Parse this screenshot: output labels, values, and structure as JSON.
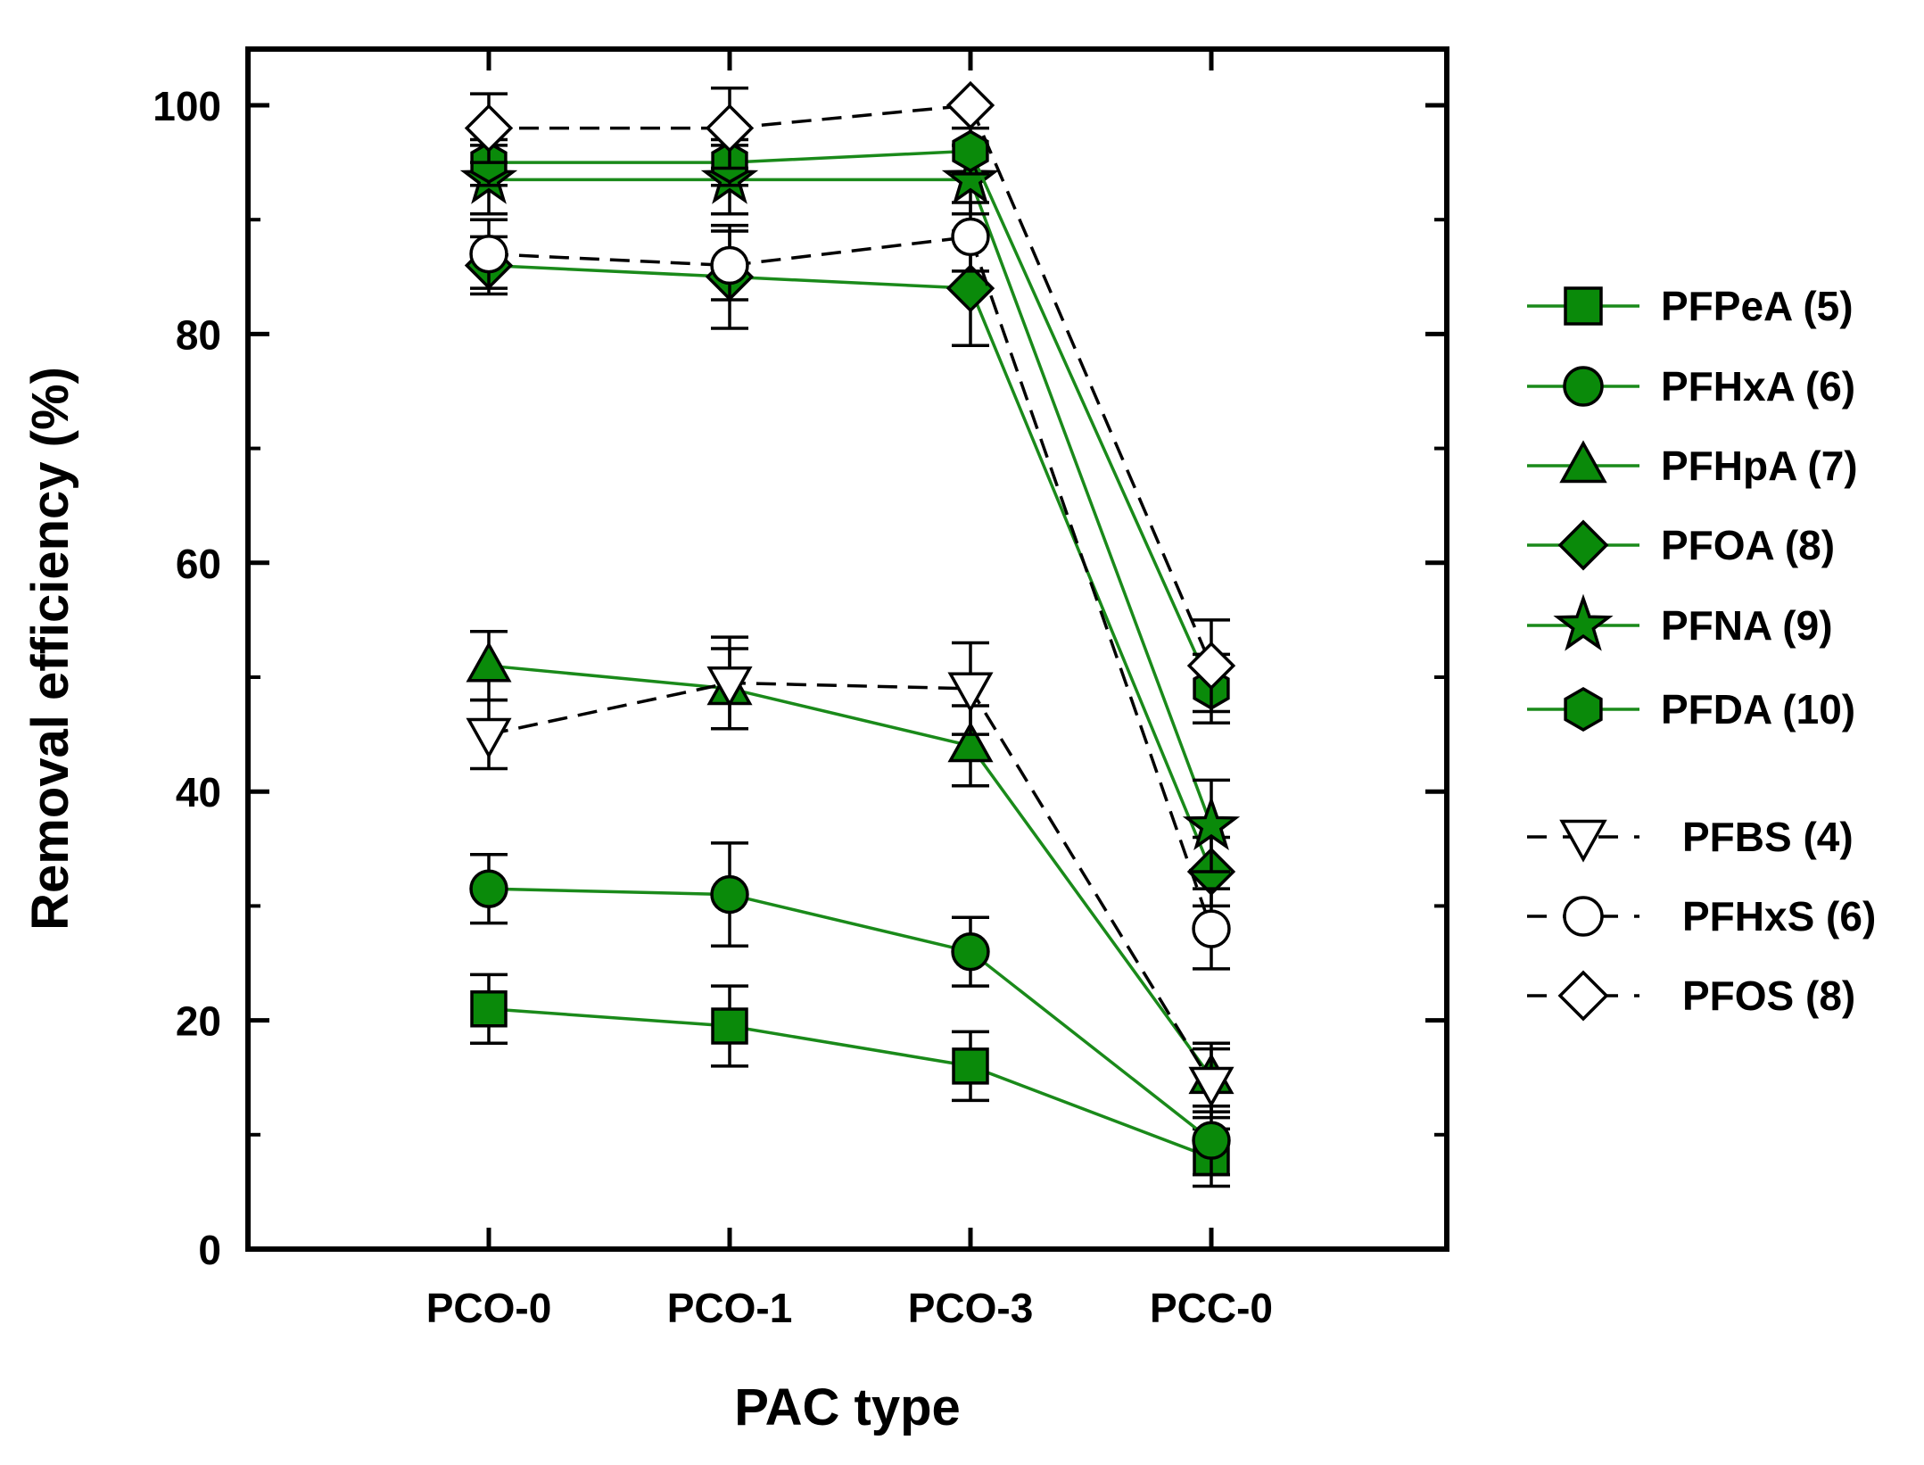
{
  "chart_data": {
    "type": "line",
    "title": "",
    "xlabel": "PAC type",
    "ylabel": "Removal efficiency  (%)",
    "categories": [
      "PCO-0",
      "PCO-1",
      "PCO-3",
      "PCC-0"
    ],
    "ylim": [
      0,
      100
    ],
    "yticks": [
      0,
      20,
      40,
      60,
      80,
      100
    ],
    "ytick_labels": [
      "0",
      "20",
      "40",
      "60",
      "80",
      "100"
    ],
    "grid": false,
    "legend_position": "right",
    "colors": {
      "green": "#0a8a0a",
      "line_green": "#1a8a1a",
      "black": "#000000",
      "white": "#ffffff"
    },
    "series": [
      {
        "name": "PFPeA (5)",
        "marker": "square",
        "fill": "green",
        "line": "solid",
        "values": [
          21,
          19.5,
          16,
          8
        ],
        "errors": [
          3,
          3.5,
          3,
          2.5
        ]
      },
      {
        "name": "PFHxA (6)",
        "marker": "circle",
        "fill": "green",
        "line": "solid",
        "values": [
          31.5,
          31,
          26,
          9.5
        ],
        "errors": [
          3,
          4.5,
          3,
          3
        ]
      },
      {
        "name": "PFHpA (7)",
        "marker": "triangle",
        "fill": "green",
        "line": "solid",
        "values": [
          51,
          49,
          44,
          15
        ],
        "errors": [
          3,
          3.5,
          3.5,
          3
        ]
      },
      {
        "name": "PFOA (8)",
        "marker": "diamond",
        "fill": "green",
        "line": "solid",
        "values": [
          86,
          85,
          84,
          33
        ],
        "errors": [
          2.5,
          4.5,
          5,
          3
        ]
      },
      {
        "name": "PFNA (9)",
        "marker": "star",
        "fill": "green",
        "line": "solid",
        "values": [
          93.5,
          93.5,
          93.5,
          37
        ],
        "errors": [
          3,
          3,
          3,
          4
        ]
      },
      {
        "name": "PFDA (10)",
        "marker": "hexagon",
        "fill": "green",
        "line": "solid",
        "values": [
          95,
          95,
          96,
          49
        ],
        "errors": [
          2,
          2,
          2,
          3
        ]
      },
      {
        "name": "PFBS (4)",
        "marker": "triangle-down",
        "fill": "white",
        "line": "dashed",
        "values": [
          45,
          49.5,
          49,
          14.5
        ],
        "errors": [
          3,
          4,
          4,
          3
        ]
      },
      {
        "name": "PFHxS (6)",
        "marker": "circle",
        "fill": "white",
        "line": "dashed",
        "values": [
          87,
          86,
          88.5,
          28
        ],
        "errors": [
          3,
          3,
          3,
          3.5
        ]
      },
      {
        "name": "PFOS (8)",
        "marker": "diamond",
        "fill": "white",
        "line": "dashed",
        "values": [
          98,
          98,
          100,
          51
        ],
        "errors": [
          3,
          3.5,
          0,
          4
        ]
      }
    ]
  }
}
